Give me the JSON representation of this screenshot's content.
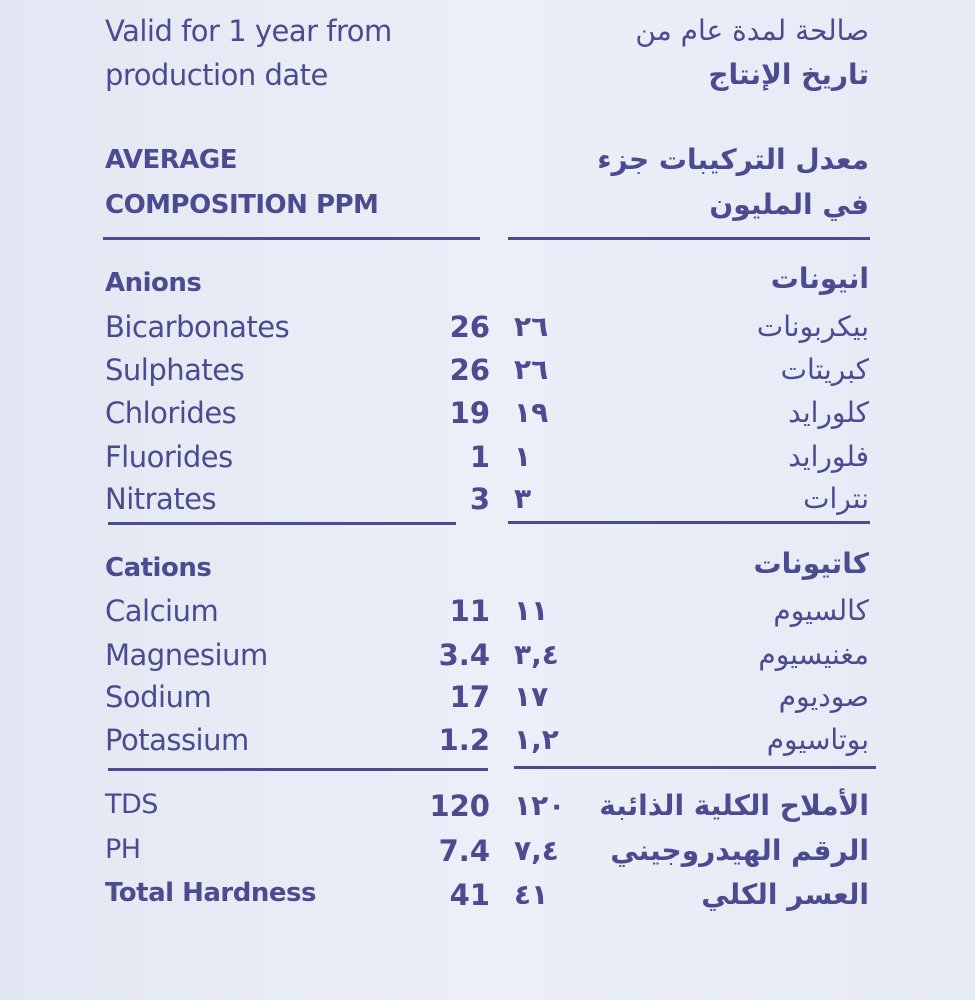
{
  "validity": {
    "en_line1": "Valid for 1 year from",
    "en_line2": "production date",
    "ar_line1": "صالحة لمدة عام من",
    "ar_line2": "تاريخ الإنتاج"
  },
  "heading": {
    "en_line1": "AVERAGE",
    "en_line2": "COMPOSITION PPM",
    "ar_line1": "معدل التركيبات جزء",
    "ar_line2": "في المليون"
  },
  "anions": {
    "en_title": "Anions",
    "ar_title": "انيونات",
    "rows": [
      {
        "en": "Bicarbonates",
        "value": "26",
        "ar_value": "٢٦",
        "ar": "بيكربونات"
      },
      {
        "en": "Sulphates",
        "value": "26",
        "ar_value": "٢٦",
        "ar": "كبريتات"
      },
      {
        "en": "Chlorides",
        "value": "19",
        "ar_value": "١٩",
        "ar": "كلورايد"
      },
      {
        "en": "Fluorides",
        "value": "1",
        "ar_value": "١",
        "ar": "فلورايد"
      },
      {
        "en": "Nitrates",
        "value": "3",
        "ar_value": "٣",
        "ar": "نترات"
      }
    ]
  },
  "cations": {
    "en_title": "Cations",
    "ar_title": "كاتيونات",
    "rows": [
      {
        "en": "Calcium",
        "value": "11",
        "ar_value": "١١",
        "ar": "كالسيوم"
      },
      {
        "en": "Magnesium",
        "value": "3.4",
        "ar_value": "٣,٤",
        "ar": "مغنيسيوم"
      },
      {
        "en": "Sodium",
        "value": "17",
        "ar_value": "١٧",
        "ar": "صوديوم"
      },
      {
        "en": "Potassium",
        "value": "1.2",
        "ar_value": "١,٢",
        "ar": "بوتاسيوم"
      }
    ]
  },
  "totals": [
    {
      "en": "TDS",
      "value": "120",
      "ar_value": "١٢٠",
      "ar": "الأملاح الكلية الذائبة"
    },
    {
      "en": "PH",
      "value": "7.4",
      "ar_value": "٧,٤",
      "ar": "الرقم الهيدروجيني"
    },
    {
      "en": "Total Hardness",
      "value": "41",
      "ar_value": "٤١",
      "ar": "العسر الكلي"
    }
  ],
  "colors": {
    "text": "#4b4b8f",
    "background": "#e8ecf6"
  }
}
